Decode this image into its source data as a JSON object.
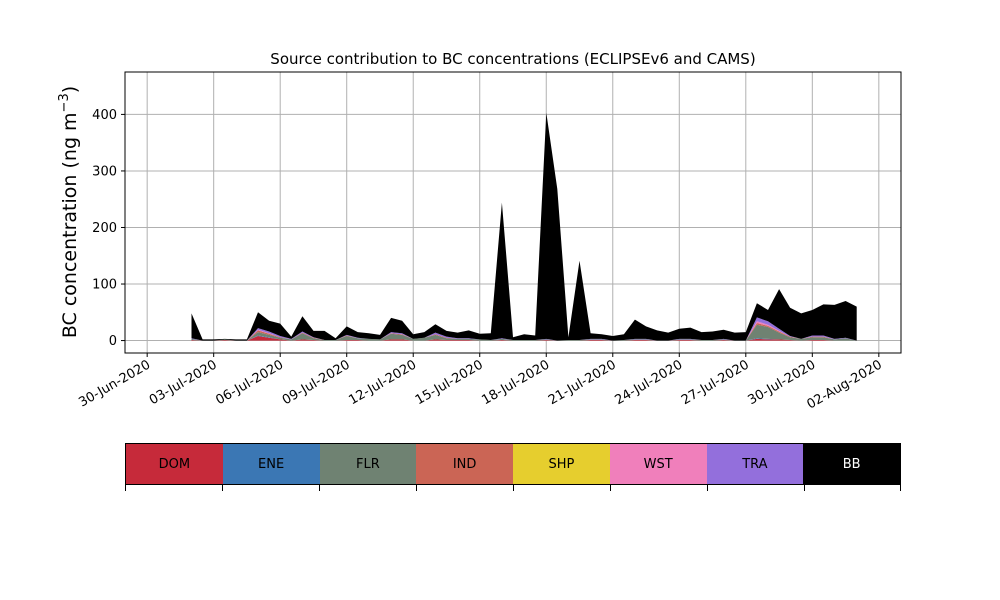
{
  "chart_data": {
    "type": "area",
    "title": "Source contribution to BC concentrations (ECLIPSEv6 and CAMS)",
    "ylabel_main": "BC concentration (ng m",
    "ylabel_sup": "−3",
    "ylabel_close": ")",
    "xlabel": "",
    "ylim": [
      -22,
      475
    ],
    "xlim": [
      "2020-06-29",
      "2020-08-03"
    ],
    "grid": true,
    "yticks": [
      0,
      100,
      200,
      300,
      400
    ],
    "xticks": [
      "30-Jun-2020",
      "03-Jul-2020",
      "06-Jul-2020",
      "09-Jul-2020",
      "12-Jul-2020",
      "15-Jul-2020",
      "18-Jul-2020",
      "21-Jul-2020",
      "24-Jul-2020",
      "27-Jul-2020",
      "30-Jul-2020",
      "02-Aug-2020"
    ],
    "x": [
      "2020-07-02",
      "2020-07-02 12:00",
      "2020-07-03",
      "2020-07-03 12:00",
      "2020-07-04",
      "2020-07-04 12:00",
      "2020-07-05",
      "2020-07-05 12:00",
      "2020-07-06",
      "2020-07-06 12:00",
      "2020-07-07",
      "2020-07-07 12:00",
      "2020-07-08",
      "2020-07-08 12:00",
      "2020-07-09",
      "2020-07-09 12:00",
      "2020-07-10",
      "2020-07-10 12:00",
      "2020-07-11",
      "2020-07-11 12:00",
      "2020-07-12",
      "2020-07-12 12:00",
      "2020-07-13",
      "2020-07-13 12:00",
      "2020-07-14",
      "2020-07-14 12:00",
      "2020-07-15",
      "2020-07-15 12:00",
      "2020-07-16",
      "2020-07-16 12:00",
      "2020-07-17",
      "2020-07-17 12:00",
      "2020-07-18",
      "2020-07-18 12:00",
      "2020-07-19",
      "2020-07-19 12:00",
      "2020-07-20",
      "2020-07-20 12:00",
      "2020-07-21",
      "2020-07-21 12:00",
      "2020-07-22",
      "2020-07-22 12:00",
      "2020-07-23",
      "2020-07-23 12:00",
      "2020-07-24",
      "2020-07-24 12:00",
      "2020-07-25",
      "2020-07-25 12:00",
      "2020-07-26",
      "2020-07-26 12:00",
      "2020-07-27",
      "2020-07-27 12:00",
      "2020-07-28",
      "2020-07-28 12:00",
      "2020-07-29",
      "2020-07-29 12:00",
      "2020-07-30",
      "2020-07-30 12:00",
      "2020-07-31",
      "2020-07-31 12:00",
      "2020-08-01"
    ],
    "series": [
      {
        "name": "DOM",
        "color": "#c62a3a",
        "values": [
          1,
          0,
          0,
          1,
          0,
          0,
          8,
          5,
          2,
          0,
          2,
          1,
          0,
          0,
          1,
          1,
          0,
          0,
          2,
          2,
          0,
          0,
          2,
          1,
          1,
          1,
          0,
          0,
          1,
          0,
          0,
          0,
          1,
          0,
          0,
          0,
          1,
          1,
          0,
          0,
          1,
          1,
          0,
          0,
          1,
          1,
          0,
          0,
          1,
          0,
          0,
          3,
          2,
          2,
          1,
          0,
          1,
          1,
          0,
          0,
          0
        ]
      },
      {
        "name": "ENE",
        "color": "#3b77b4",
        "values": [
          0,
          0,
          0,
          0,
          0,
          0,
          1,
          1,
          0,
          0,
          0,
          0,
          0,
          0,
          0,
          0,
          0,
          0,
          0,
          0,
          0,
          0,
          0,
          0,
          0,
          0,
          0,
          0,
          0,
          0,
          0,
          0,
          0,
          0,
          0,
          0,
          0,
          0,
          0,
          0,
          0,
          0,
          0,
          0,
          0,
          0,
          0,
          0,
          0,
          0,
          0,
          1,
          1,
          0,
          0,
          0,
          0,
          0,
          0,
          0,
          0
        ]
      },
      {
        "name": "FLR",
        "color": "#6f8272",
        "values": [
          2,
          0,
          0,
          1,
          0,
          0,
          6,
          4,
          3,
          2,
          11,
          3,
          1,
          1,
          7,
          3,
          3,
          2,
          10,
          8,
          3,
          5,
          8,
          3,
          2,
          2,
          2,
          1,
          2,
          1,
          1,
          1,
          1,
          0,
          1,
          1,
          1,
          1,
          0,
          1,
          1,
          1,
          0,
          0,
          1,
          1,
          1,
          1,
          1,
          0,
          0,
          24,
          21,
          12,
          5,
          3,
          5,
          5,
          2,
          4,
          0
        ]
      },
      {
        "name": "IND",
        "color": "#cb6555",
        "values": [
          0,
          0,
          0,
          0,
          0,
          0,
          3,
          2,
          1,
          0,
          1,
          1,
          0,
          0,
          1,
          0,
          0,
          0,
          1,
          1,
          0,
          0,
          1,
          1,
          0,
          0,
          0,
          0,
          0,
          0,
          0,
          0,
          0,
          0,
          0,
          0,
          0,
          0,
          0,
          0,
          0,
          0,
          0,
          0,
          0,
          0,
          0,
          0,
          0,
          0,
          0,
          3,
          2,
          2,
          1,
          0,
          1,
          1,
          0,
          0,
          0
        ]
      },
      {
        "name": "SHP",
        "color": "#e6ce2e",
        "values": [
          0,
          0,
          0,
          0,
          0,
          0,
          0,
          0,
          0,
          0,
          0,
          0,
          0,
          0,
          0,
          0,
          0,
          0,
          0,
          0,
          0,
          0,
          0,
          0,
          0,
          0,
          0,
          0,
          0,
          0,
          0,
          0,
          0,
          0,
          0,
          0,
          0,
          0,
          0,
          0,
          0,
          0,
          0,
          0,
          0,
          0,
          0,
          0,
          0,
          0,
          0,
          0,
          0,
          0,
          0,
          0,
          0,
          0,
          0,
          0,
          0
        ]
      },
      {
        "name": "WST",
        "color": "#f07fbb",
        "values": [
          0,
          0,
          0,
          0,
          0,
          0,
          1,
          1,
          0,
          0,
          0,
          0,
          0,
          0,
          0,
          0,
          0,
          0,
          0,
          0,
          0,
          0,
          0,
          0,
          0,
          0,
          0,
          0,
          0,
          0,
          0,
          0,
          0,
          0,
          0,
          0,
          0,
          0,
          0,
          0,
          0,
          0,
          0,
          0,
          0,
          0,
          0,
          0,
          0,
          0,
          0,
          3,
          2,
          1,
          0,
          0,
          0,
          0,
          0,
          0,
          0
        ]
      },
      {
        "name": "TRA",
        "color": "#936fdc",
        "values": [
          1,
          0,
          0,
          0,
          0,
          0,
          3,
          3,
          2,
          1,
          2,
          1,
          0,
          0,
          1,
          1,
          0,
          0,
          2,
          2,
          0,
          0,
          3,
          2,
          1,
          1,
          0,
          0,
          1,
          0,
          0,
          0,
          1,
          0,
          0,
          0,
          1,
          1,
          0,
          0,
          1,
          1,
          0,
          0,
          1,
          1,
          0,
          0,
          1,
          0,
          0,
          7,
          6,
          4,
          1,
          0,
          2,
          2,
          1,
          1,
          0
        ]
      },
      {
        "name": "BB",
        "color": "#000000",
        "values": [
          44,
          2,
          2,
          1,
          2,
          2,
          28,
          19,
          22,
          4,
          27,
          11,
          16,
          3,
          15,
          10,
          10,
          8,
          25,
          22,
          8,
          10,
          15,
          10,
          10,
          14,
          10,
          12,
          240,
          5,
          10,
          8,
          400,
          268,
          5,
          140,
          10,
          8,
          8,
          10,
          34,
          22,
          18,
          14,
          18,
          20,
          14,
          15,
          16,
          14,
          15,
          25,
          20,
          70,
          50,
          45,
          45,
          55,
          60,
          65,
          60
        ]
      }
    ]
  },
  "legend": {
    "labels": [
      "DOM",
      "ENE",
      "FLR",
      "IND",
      "SHP",
      "WST",
      "TRA",
      "BB"
    ],
    "colors": [
      "#c62a3a",
      "#3b77b4",
      "#6f8272",
      "#cb6555",
      "#e6ce2e",
      "#f07fbb",
      "#936fdc",
      "#000000"
    ],
    "text_colors": [
      "#000000",
      "#000000",
      "#000000",
      "#000000",
      "#000000",
      "#000000",
      "#000000",
      "#ffffff"
    ]
  }
}
